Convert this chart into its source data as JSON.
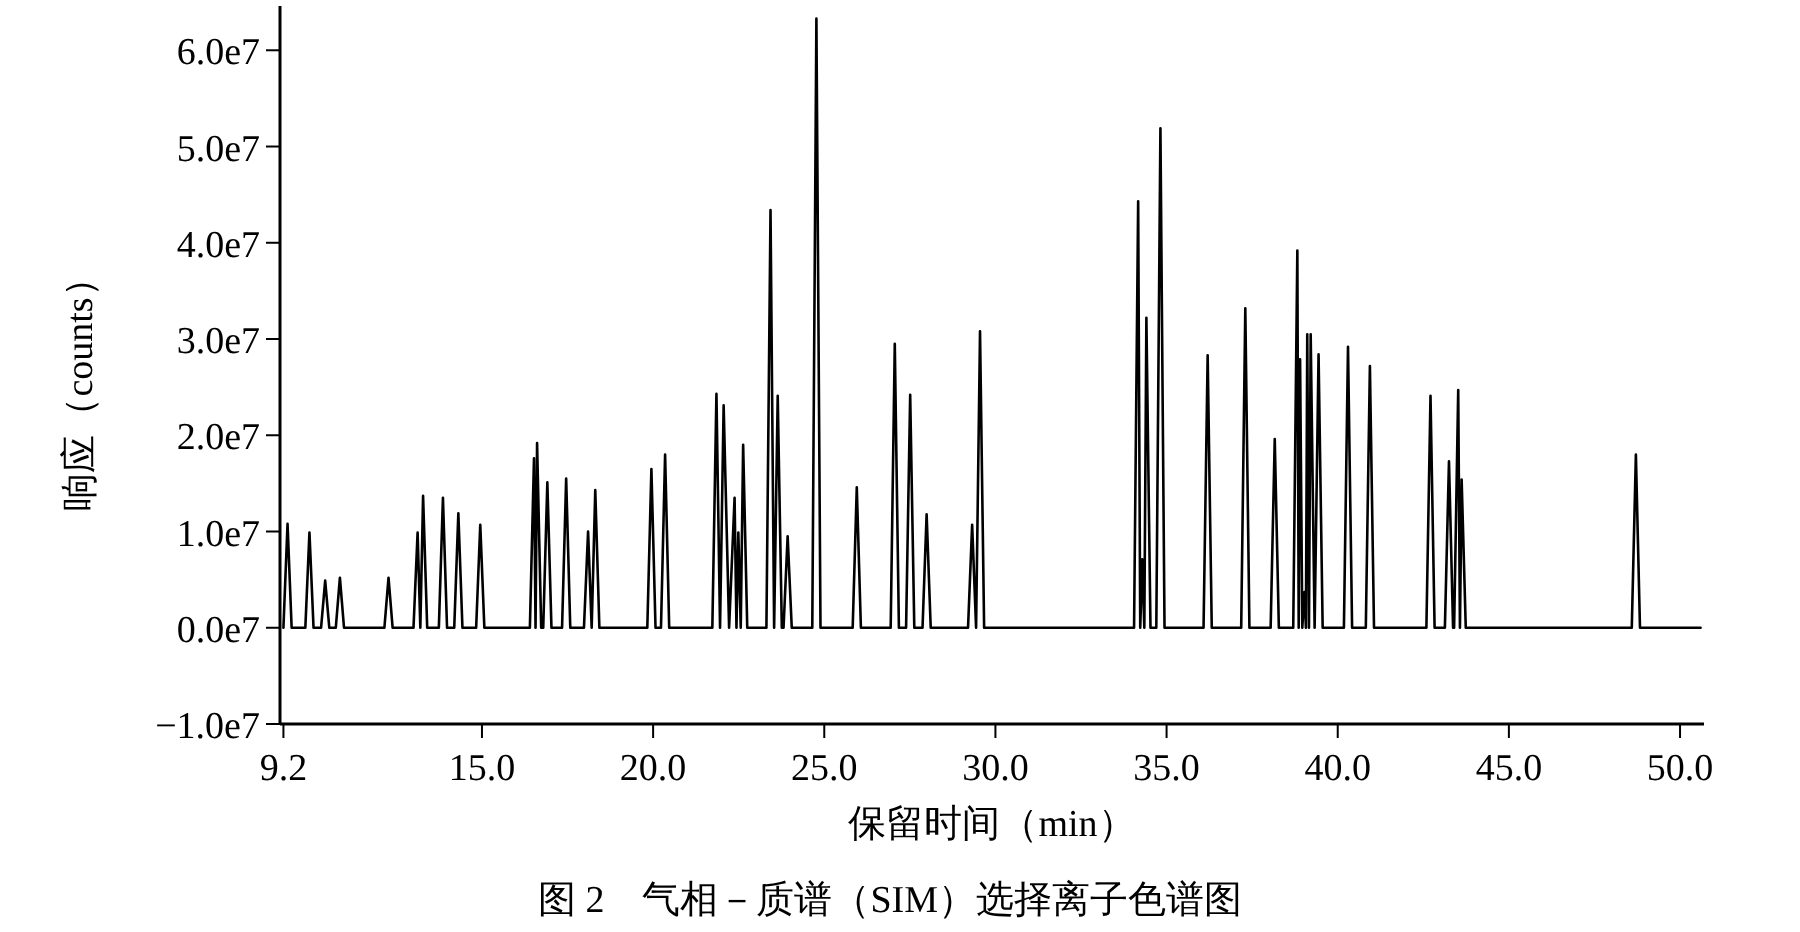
{
  "chart_data": {
    "type": "line",
    "xlabel": "保留时间（min）",
    "ylabel": "响应（counts）",
    "annotations": [
      "图 2　气相－质谱（SIM）选择离子色谱图"
    ],
    "xlim": [
      9.1,
      50.7
    ],
    "xticks": [
      {
        "value": 9.2,
        "label": "9.2"
      },
      {
        "value": 15,
        "label": "15.0"
      },
      {
        "value": 20,
        "label": "20.0"
      },
      {
        "value": 25,
        "label": "25.0"
      },
      {
        "value": 30,
        "label": "30.0"
      },
      {
        "value": 35,
        "label": "35.0"
      },
      {
        "value": 40,
        "label": "40.0"
      },
      {
        "value": 45,
        "label": "45.0"
      },
      {
        "value": 50,
        "label": "50.0"
      }
    ],
    "ylim": [
      -10000000,
      64600000
    ],
    "yticks": [
      {
        "value": -10000000,
        "label": "−1.0e7"
      },
      {
        "value": 0,
        "label": "0.0e7"
      },
      {
        "value": 10000000,
        "label": "1.0e7"
      },
      {
        "value": 20000000,
        "label": "2.0e7"
      },
      {
        "value": 30000000,
        "label": "3.0e7"
      },
      {
        "value": 40000000,
        "label": "4.0e7"
      },
      {
        "value": 50000000,
        "label": "5.0e7"
      },
      {
        "value": 60000000,
        "label": "6.0e7"
      }
    ],
    "series": [
      {
        "color": "#000000",
        "x": [
          9.2,
          9.32,
          9.44,
          9.84,
          9.96,
          10.08,
          10.3,
          10.42,
          10.54,
          10.73,
          10.85,
          10.97,
          12.15,
          12.27,
          12.39,
          13.0,
          13.12,
          13.2,
          13.28,
          13.4,
          13.74,
          13.86,
          13.98,
          14.19,
          14.31,
          14.43,
          14.83,
          14.95,
          15.07,
          16.4,
          16.52,
          16.565,
          16.61,
          16.73,
          16.79,
          16.91,
          17.03,
          17.34,
          17.46,
          17.58,
          17.98,
          18.1,
          18.205,
          18.31,
          18.43,
          19.83,
          19.95,
          20.07,
          20.23,
          20.35,
          20.47,
          21.73,
          21.85,
          21.955,
          22.06,
          22.22,
          22.38,
          22.435,
          22.49,
          22.56,
          22.63,
          22.75,
          23.31,
          23.43,
          23.535,
          23.64,
          23.76,
          23.81,
          23.93,
          24.05,
          24.65,
          24.77,
          24.89,
          25.83,
          25.95,
          26.07,
          26.94,
          27.06,
          27.18,
          27.39,
          27.51,
          27.63,
          27.87,
          27.99,
          28.11,
          29.2,
          29.32,
          29.435,
          29.55,
          29.67,
          34.05,
          34.17,
          34.23,
          34.29,
          34.35,
          34.41,
          34.53,
          34.7,
          34.82,
          34.94,
          36.08,
          36.2,
          36.32,
          37.18,
          37.3,
          37.42,
          38.04,
          38.16,
          38.28,
          38.7,
          38.82,
          38.86,
          38.9,
          38.965,
          39.03,
          39.07,
          39.11,
          39.16,
          39.21,
          39.325,
          39.44,
          39.56,
          40.18,
          40.3,
          40.42,
          40.82,
          40.94,
          41.06,
          42.59,
          42.71,
          42.83,
          43.13,
          43.25,
          43.37,
          43.4,
          43.52,
          43.57,
          43.62,
          43.74,
          48.59,
          48.71,
          48.83,
          50.6
        ],
        "values": [
          0,
          10800000,
          0,
          0,
          9900000,
          0,
          0,
          4900000,
          0,
          0,
          5200000,
          0,
          0,
          5200000,
          0,
          0,
          9900000,
          0,
          13700000,
          0,
          0,
          13500000,
          0,
          0,
          11900000,
          0,
          0,
          10700000,
          0,
          0,
          17600000,
          0,
          19200000,
          0,
          0,
          15100000,
          0,
          0,
          15500000,
          0,
          0,
          10000000,
          0,
          14300000,
          0,
          0,
          16500000,
          0,
          0,
          18000000,
          0,
          0,
          24300000,
          0,
          23100000,
          0,
          13500000,
          0,
          9900000,
          0,
          19000000,
          0,
          0,
          43400000,
          0,
          24100000,
          0,
          0,
          9500000,
          0,
          0,
          63300000,
          0,
          0,
          14600000,
          0,
          0,
          29500000,
          0,
          0,
          24200000,
          0,
          0,
          11800000,
          0,
          0,
          10700000,
          0,
          30800000,
          0,
          0,
          44300000,
          0,
          7100000,
          0,
          32200000,
          0,
          0,
          51900000,
          0,
          0,
          28300000,
          0,
          0,
          33200000,
          0,
          0,
          19600000,
          0,
          0,
          39200000,
          0,
          27900000,
          0,
          3700000,
          0,
          30500000,
          0,
          30500000,
          0,
          28400000,
          0,
          0,
          29200000,
          0,
          0,
          27200000,
          0,
          0,
          24100000,
          0,
          0,
          17300000,
          0,
          0,
          24700000,
          0,
          15400000,
          0,
          0,
          18000000,
          0,
          0
        ]
      }
    ]
  }
}
